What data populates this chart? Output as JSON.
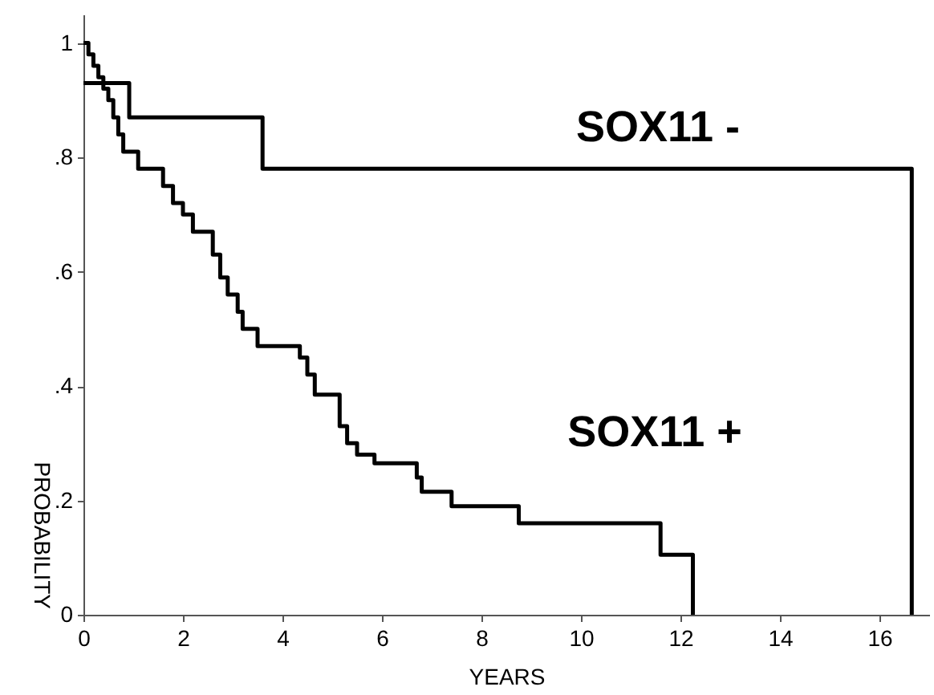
{
  "chart_data": {
    "type": "step",
    "xlabel": "YEARS",
    "ylabel": "PROBABILITY",
    "xlim": [
      0,
      17
    ],
    "ylim": [
      0,
      1.05
    ],
    "xticks": [
      0,
      2,
      4,
      6,
      8,
      10,
      12,
      14,
      16
    ],
    "yticks": [
      0,
      {
        "value": 0.2,
        "label": ".2"
      },
      {
        "value": 0.4,
        "label": ".4"
      },
      {
        "value": 0.6,
        "label": ".6"
      },
      {
        "value": 0.8,
        "label": ".8"
      },
      1
    ],
    "grid": false,
    "legend": false,
    "line_style": "solid",
    "marker": "none",
    "series": [
      {
        "name": "SOX11 -",
        "color": "#000000",
        "x": [
          0,
          0.92,
          3.6,
          16.65
        ],
        "values": [
          0.93,
          0.87,
          0.78,
          0
        ]
      },
      {
        "name": "SOX11 +",
        "color": "#000000",
        "x": [
          0,
          0.1,
          0.2,
          0.3,
          0.4,
          0.5,
          0.6,
          0.7,
          0.8,
          1.1,
          1.6,
          1.8,
          2.0,
          2.2,
          2.6,
          2.75,
          2.9,
          3.1,
          3.2,
          3.5,
          4.35,
          4.5,
          4.65,
          5.15,
          5.3,
          5.5,
          5.85,
          6.7,
          6.8,
          7.4,
          8.75,
          11.6,
          12.25
        ],
        "values": [
          1,
          0.98,
          0.96,
          0.94,
          0.92,
          0.9,
          0.87,
          0.84,
          0.81,
          0.78,
          0.75,
          0.72,
          0.7,
          0.67,
          0.63,
          0.59,
          0.56,
          0.53,
          0.5,
          0.47,
          0.45,
          0.42,
          0.385,
          0.33,
          0.3,
          0.28,
          0.265,
          0.24,
          0.215,
          0.19,
          0.16,
          0.105,
          0
        ]
      }
    ]
  }
}
